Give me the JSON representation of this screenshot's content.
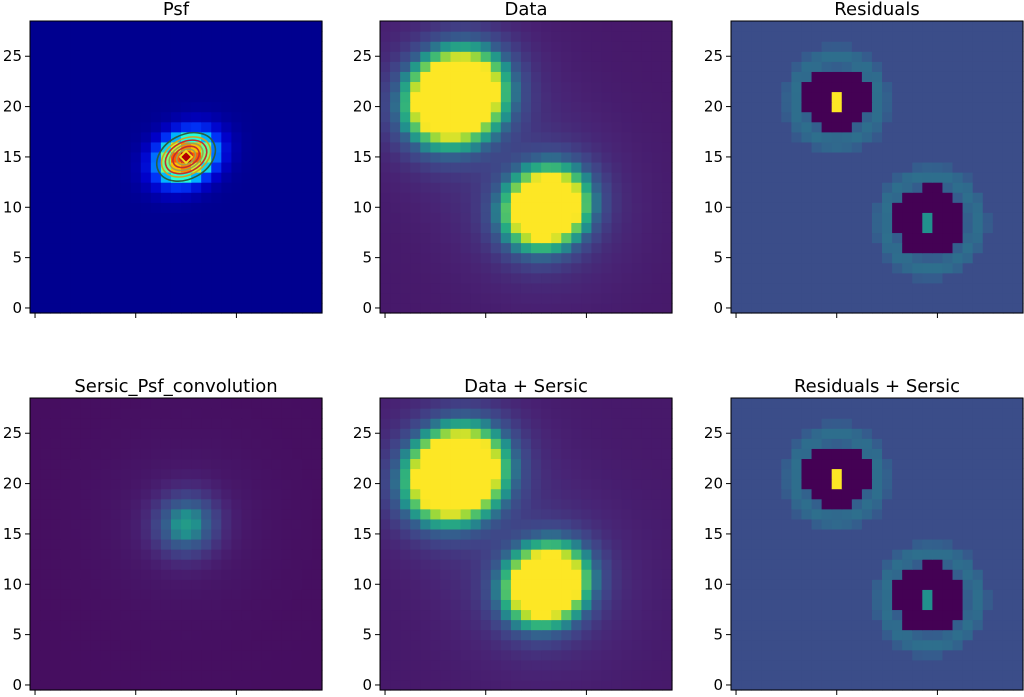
{
  "chart_data": [
    {
      "type": "heatmap",
      "title": "Psf",
      "colormap": "jet",
      "field": "psf",
      "contours": true,
      "xticks": [
        "",
        "",
        ""
      ],
      "ylim": [
        0,
        28
      ],
      "yticks": [
        0,
        5,
        10,
        15,
        20,
        25
      ],
      "peaks": [
        {
          "x": 15,
          "y": 15,
          "value": 1.0
        }
      ]
    },
    {
      "type": "heatmap",
      "title": "Data",
      "colormap": "viridis",
      "field": "data",
      "xticks": [
        "",
        "",
        ""
      ],
      "ylim": [
        0,
        28
      ],
      "yticks": [
        0,
        5,
        10,
        15,
        20,
        25
      ],
      "peaks": [
        {
          "x": 7,
          "y": 21,
          "value": 1.0
        },
        {
          "x": 16,
          "y": 10,
          "value": 0.9
        }
      ]
    },
    {
      "type": "heatmap",
      "title": "Residuals",
      "colormap": "viridis",
      "field": "residuals",
      "xticks": [
        "",
        "",
        ""
      ],
      "ylim": [
        0,
        28
      ],
      "yticks": [
        0,
        5,
        10,
        15,
        20,
        25
      ],
      "peaks": [
        {
          "x": 10,
          "y": 21,
          "value": 1.0
        },
        {
          "x": 19,
          "y": 9,
          "value": 0.5
        }
      ]
    },
    {
      "type": "heatmap",
      "title": "Sersic_Psf_convolution",
      "colormap": "viridis",
      "field": "sersic",
      "xticks": [
        "",
        "",
        ""
      ],
      "ylim": [
        0,
        28
      ],
      "yticks": [
        0,
        5,
        10,
        15,
        20,
        25
      ],
      "peaks": [
        {
          "x": 15,
          "y": 16,
          "value": 0.4
        }
      ]
    },
    {
      "type": "heatmap",
      "title": "Data + Sersic",
      "colormap": "viridis",
      "field": "data",
      "xticks": [
        "",
        "",
        ""
      ],
      "ylim": [
        0,
        28
      ],
      "yticks": [
        0,
        5,
        10,
        15,
        20,
        25
      ],
      "peaks": [
        {
          "x": 7,
          "y": 21,
          "value": 1.0
        },
        {
          "x": 16,
          "y": 10,
          "value": 0.9
        }
      ]
    },
    {
      "type": "heatmap",
      "title": "Residuals + Sersic",
      "colormap": "viridis",
      "field": "residuals",
      "xticks": [
        "",
        "",
        ""
      ],
      "ylim": [
        0,
        28
      ],
      "yticks": [
        0,
        5,
        10,
        15,
        20,
        25
      ],
      "peaks": [
        {
          "x": 10,
          "y": 21,
          "value": 1.0
        },
        {
          "x": 19,
          "y": 9,
          "value": 0.5
        }
      ]
    }
  ]
}
